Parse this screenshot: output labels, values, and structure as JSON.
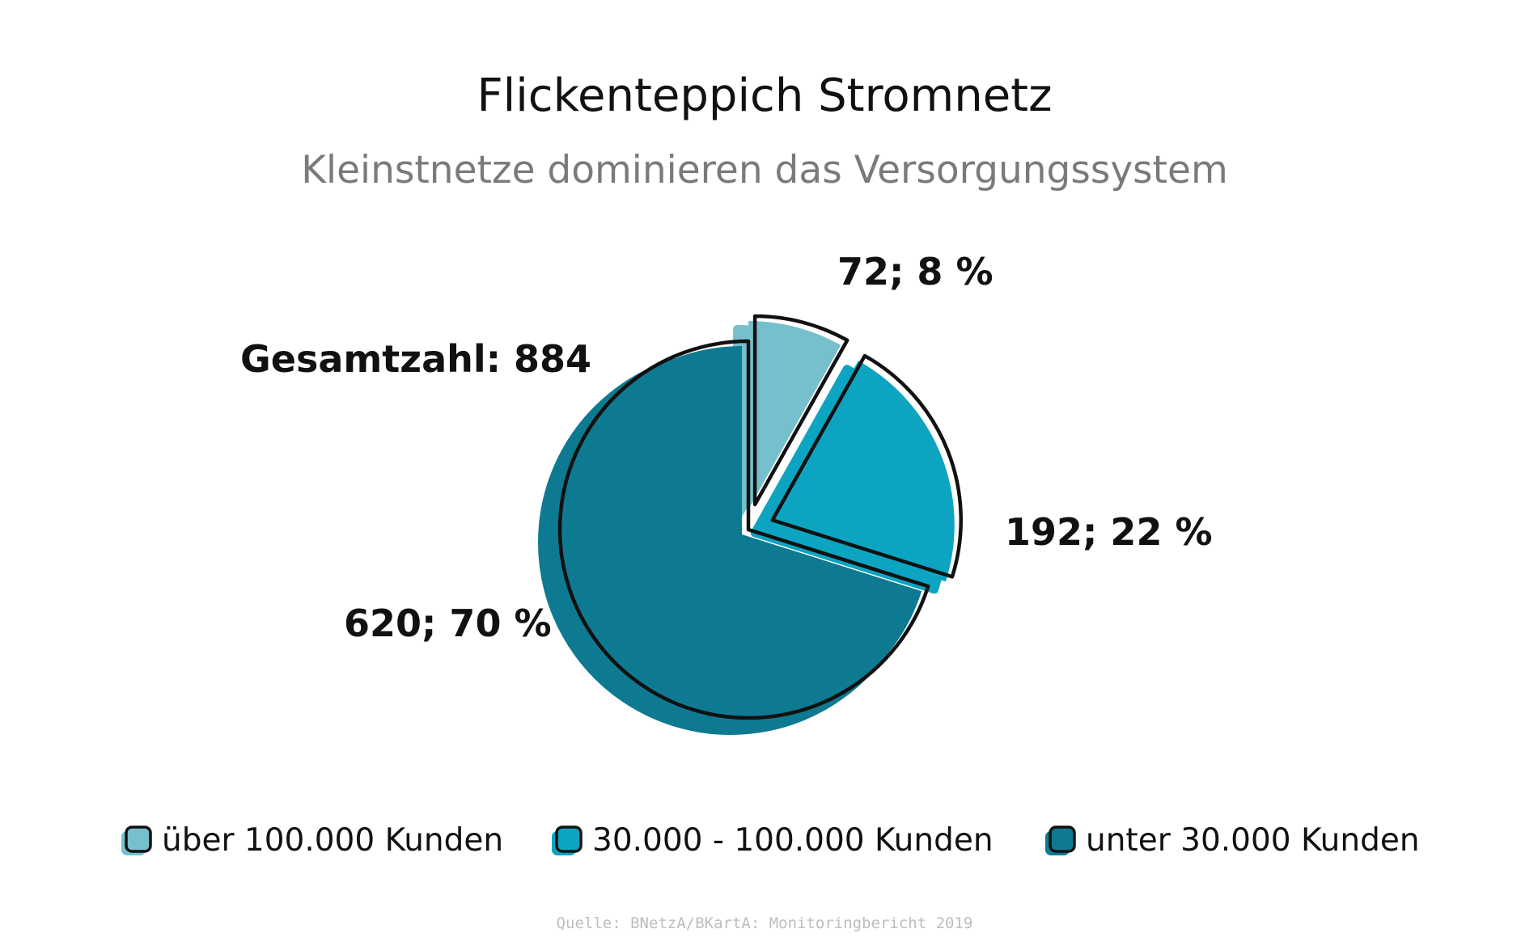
{
  "chart_data": {
    "type": "pie",
    "title": "Flickenteppich Stromnetz",
    "subtitle": "Kleinstnetze dominieren das Versorgungssystem",
    "total_label": "Gesamtzahl: 884",
    "source": "Quelle: BNetzA/BKartA: Monitoringbericht 2019",
    "slices": [
      {
        "name": "über 100.000 Kunden",
        "value": 72,
        "percent": 8,
        "label": "72; 8 %",
        "color": "#76c0cd"
      },
      {
        "name": "30.000 - 100.000 Kunden",
        "value": 192,
        "percent": 22,
        "label": "192; 22 %",
        "color": "#0da4c1"
      },
      {
        "name": "unter 30.000 Kunden",
        "value": 620,
        "percent": 70,
        "label": "620; 70 %",
        "color": "#0d7a91"
      }
    ]
  }
}
